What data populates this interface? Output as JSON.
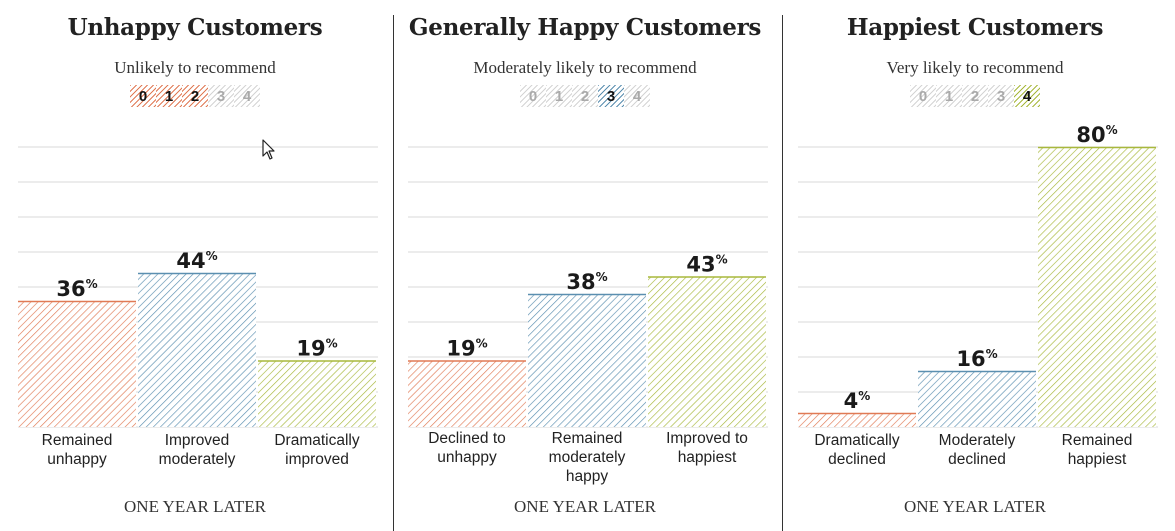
{
  "chart_data": [
    {
      "type": "bar",
      "title": "Unhappy Customers",
      "subtitle": "Unlikely to recommend",
      "scale": [
        "0",
        "1",
        "2",
        "3",
        "4"
      ],
      "scale_active": [
        0,
        1,
        2
      ],
      "categories": [
        "Remained\nunhappy",
        "Improved\nmoderately",
        "Dramatically\nimproved"
      ],
      "values": [
        36,
        44,
        19
      ],
      "value_labels": [
        "36",
        "44",
        "19"
      ],
      "unit": "%",
      "colors": [
        "#e07a55",
        "#5b8fb0",
        "#a8b83c"
      ],
      "xlabel": "ONE YEAR LATER",
      "ylim": [
        0,
        80
      ],
      "grid": true
    },
    {
      "type": "bar",
      "title": "Generally Happy Customers",
      "subtitle": "Moderately likely to recommend",
      "scale": [
        "0",
        "1",
        "2",
        "3",
        "4"
      ],
      "scale_active": [
        3
      ],
      "categories": [
        "Declined to\nunhappy",
        "Remained\nmoderately\nhappy",
        "Improved to\nhappiest"
      ],
      "values": [
        19,
        38,
        43
      ],
      "value_labels": [
        "19",
        "38",
        "43"
      ],
      "unit": "%",
      "colors": [
        "#e07a55",
        "#5b8fb0",
        "#a8b83c"
      ],
      "xlabel": "ONE YEAR LATER",
      "ylim": [
        0,
        80
      ],
      "grid": true
    },
    {
      "type": "bar",
      "title": "Happiest Customers",
      "subtitle": "Very likely to recommend",
      "scale": [
        "0",
        "1",
        "2",
        "3",
        "4"
      ],
      "scale_active": [
        4
      ],
      "categories": [
        "Dramatically\ndeclined",
        "Moderately\ndeclined",
        "Remained\nhappiest"
      ],
      "values": [
        4,
        16,
        80
      ],
      "value_labels": [
        "4",
        "16",
        "80"
      ],
      "unit": "%",
      "colors": [
        "#e07a55",
        "#5b8fb0",
        "#a8b83c"
      ],
      "xlabel": "ONE YEAR LATER",
      "ylim": [
        0,
        80
      ],
      "grid": true
    }
  ]
}
